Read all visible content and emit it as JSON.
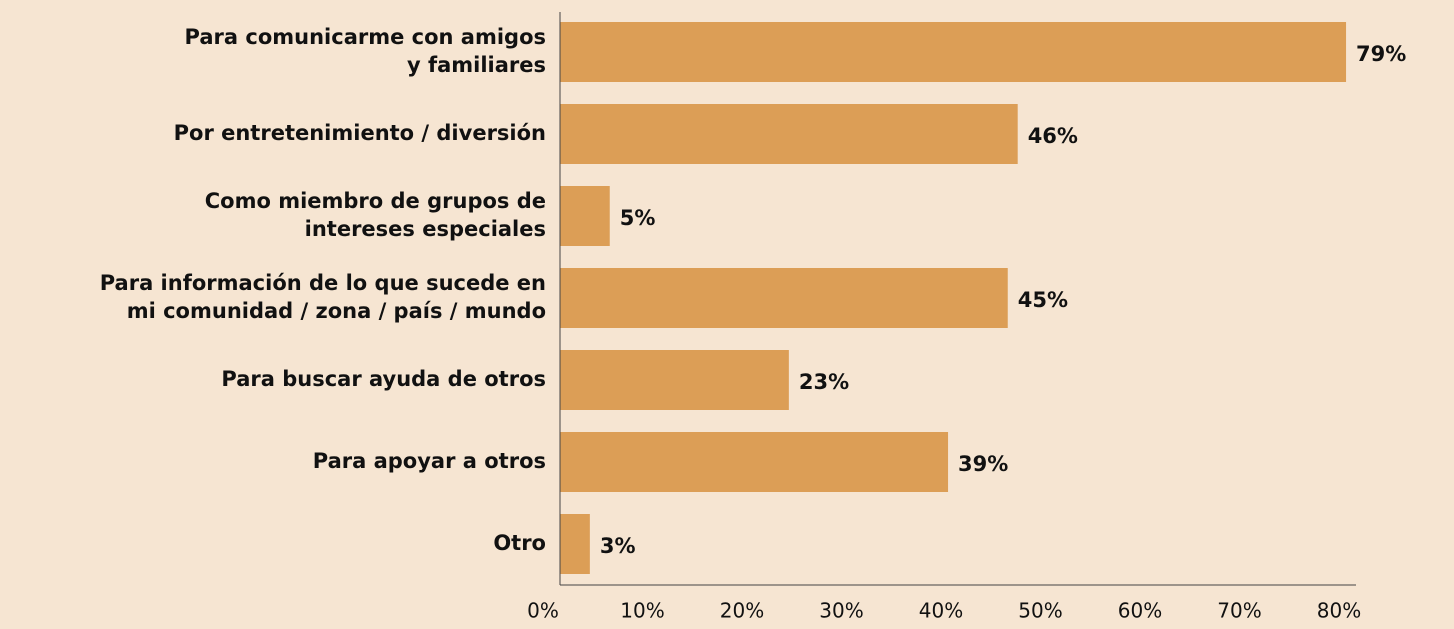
{
  "chart_data": {
    "type": "barh",
    "categories": [
      [
        "Para comunicarme con amigos",
        "y familiares"
      ],
      [
        "Por entretenimiento / diversión"
      ],
      [
        "Como miembro de grupos de",
        "intereses especiales"
      ],
      [
        "Para información de lo que sucede en",
        "mi comunidad / zona / país / mundo"
      ],
      [
        "Para buscar ayuda de otros"
      ],
      [
        "Para apoyar a otros"
      ],
      [
        "Otro"
      ]
    ],
    "values": [
      79,
      46,
      5,
      45,
      23,
      39,
      3
    ],
    "value_labels": [
      "79%",
      "46%",
      "5%",
      "45%",
      "23%",
      "39%",
      "3%"
    ],
    "color": "#dc9e56",
    "xlim": [
      0,
      80
    ],
    "xticks": [
      {
        "value": 0,
        "label": "0%"
      },
      {
        "value": 10,
        "label": "10%"
      },
      {
        "value": 20,
        "label": "20%"
      },
      {
        "value": 30,
        "label": "30%"
      },
      {
        "value": 40,
        "label": "40%"
      },
      {
        "value": 50,
        "label": "50%"
      },
      {
        "value": 60,
        "label": "60%"
      },
      {
        "value": 70,
        "label": "70%"
      },
      {
        "value": 80,
        "label": "80%"
      }
    ],
    "grid": false
  }
}
